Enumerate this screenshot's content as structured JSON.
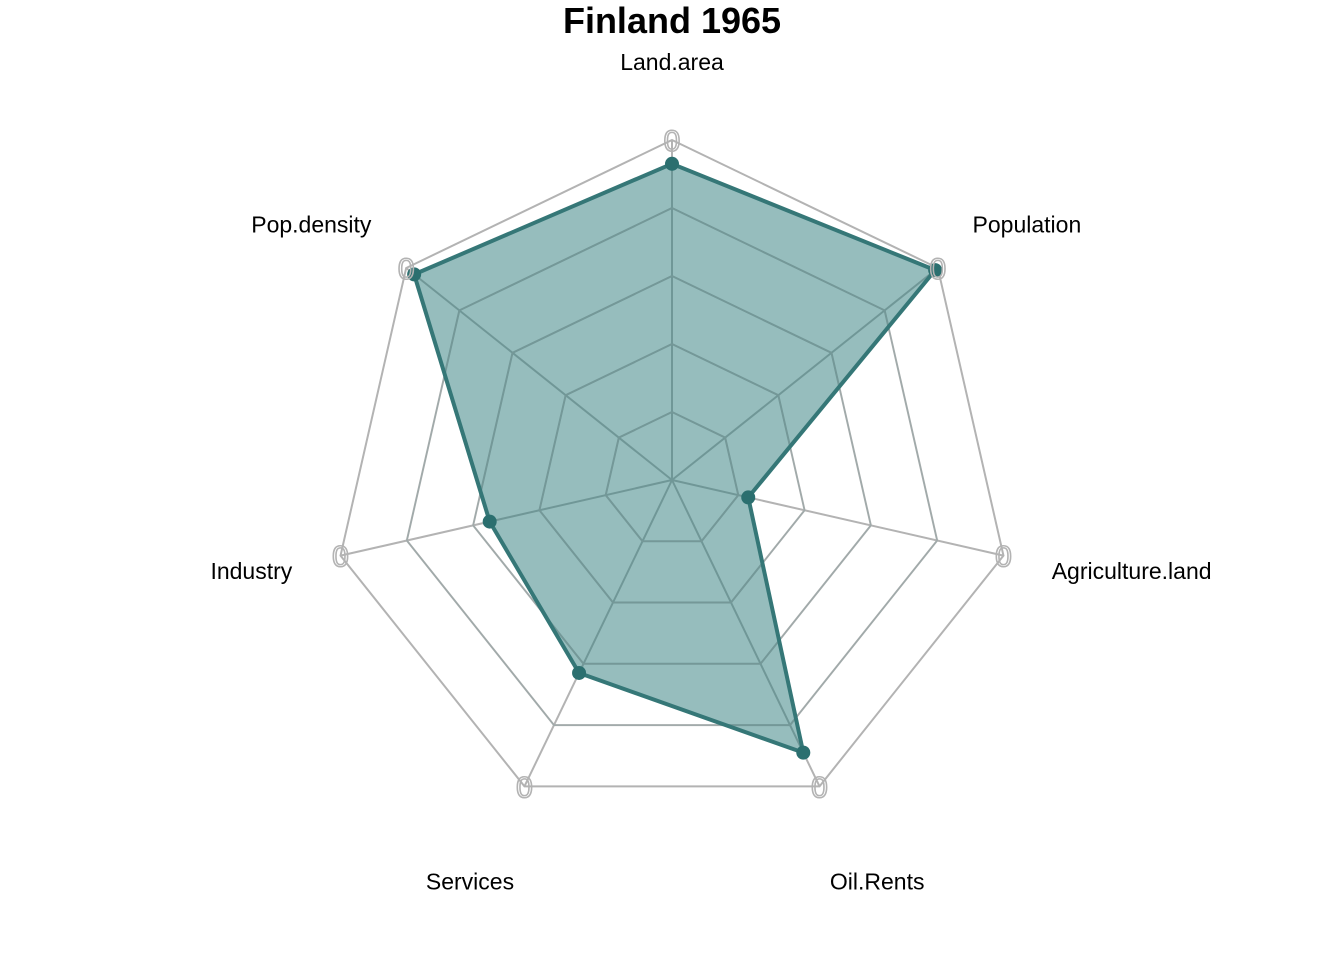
{
  "chart_data": {
    "type": "radar",
    "title": "Finland 1965",
    "axes": [
      "Land.area",
      "Population",
      "Agriculture.land",
      "Oil.Rents",
      "Services",
      "Industry",
      "Pop.density"
    ],
    "series": [
      {
        "values": [
          0.93,
          0.99,
          0.23,
          0.89,
          0.63,
          0.55,
          0.97
        ]
      }
    ],
    "range": [
      0,
      1
    ],
    "grid_levels": 5,
    "ring_tick_label": "0",
    "colors": {
      "fill": "#2e7b7b",
      "line": "#357777",
      "point": "#2b6f6f",
      "grid": "#b3b3b3",
      "inner_grid": "#7f9b9b"
    }
  }
}
